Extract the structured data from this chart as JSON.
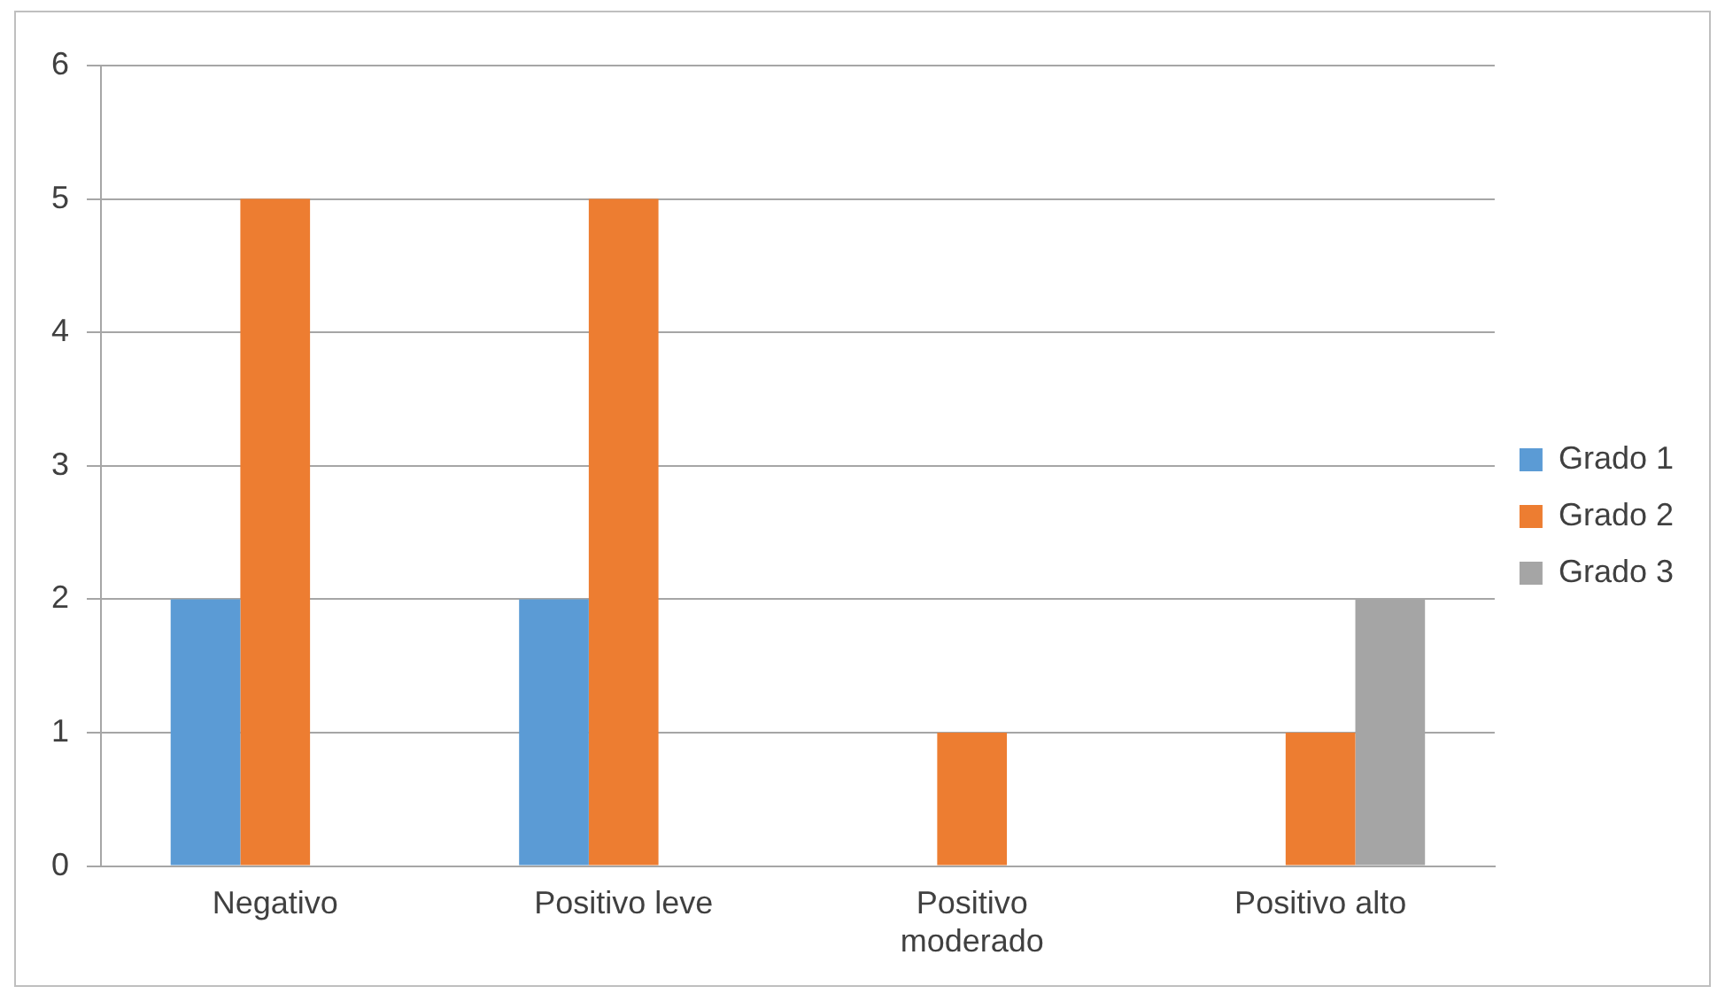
{
  "chart_data": {
    "type": "bar",
    "categories": [
      "Negativo",
      "Positivo leve",
      "Positivo moderado",
      "Positivo alto"
    ],
    "series": [
      {
        "name": "Grado 1",
        "color": "#5b9bd5",
        "values": [
          2,
          2,
          0,
          0
        ]
      },
      {
        "name": "Grado 2",
        "color": "#ed7d31",
        "values": [
          5,
          5,
          1,
          1
        ]
      },
      {
        "name": "Grado 3",
        "color": "#a5a5a5",
        "values": [
          0,
          0,
          0,
          2
        ]
      }
    ],
    "ylim": [
      0,
      6
    ],
    "yticks": [
      0,
      1,
      2,
      3,
      4,
      5,
      6
    ],
    "grid": "y",
    "legend": "right"
  }
}
